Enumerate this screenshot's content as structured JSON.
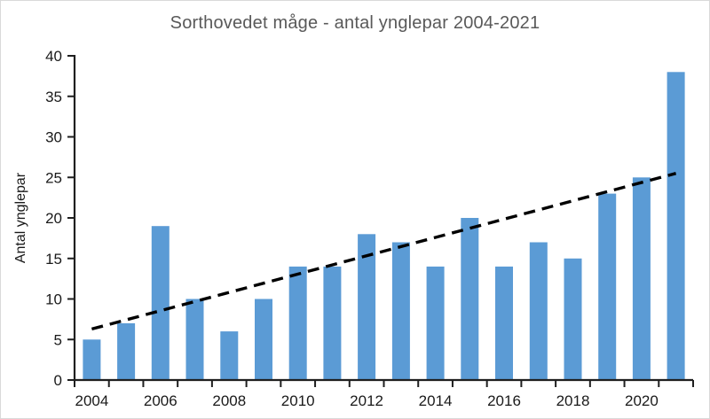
{
  "chart_data": {
    "type": "bar",
    "title": "Sorthovedet måge - antal ynglepar 2004-2021",
    "xlabel": "",
    "ylabel": "Antal ynglepar",
    "categories": [
      "2004",
      "2005",
      "2006",
      "2007",
      "2008",
      "2009",
      "2010",
      "2011",
      "2012",
      "2013",
      "2014",
      "2015",
      "2016",
      "2017",
      "2018",
      "2019",
      "2020",
      "2021"
    ],
    "values": [
      5,
      7,
      19,
      10,
      6,
      10,
      14,
      14,
      18,
      17,
      14,
      20,
      14,
      17,
      15,
      23,
      25,
      38
    ],
    "ylim": [
      0,
      40
    ],
    "yticks": [
      0,
      5,
      10,
      15,
      20,
      25,
      30,
      35,
      40
    ],
    "xtick_labels": [
      "2004",
      "2006",
      "2008",
      "2010",
      "2012",
      "2014",
      "2016",
      "2018",
      "2020"
    ],
    "xtick_label_every": 2,
    "grid": false,
    "legend": "none",
    "trendline": {
      "type": "linear",
      "style": "dashed",
      "start_value": 6.3,
      "end_value": 25.5,
      "color": "#000000"
    },
    "colors": {
      "bar": "#5b9bd5",
      "axis": "#1f1f1f",
      "title": "#595959",
      "tick_text": "#1a1a1a",
      "chart_border": "#d9d9d9"
    }
  }
}
